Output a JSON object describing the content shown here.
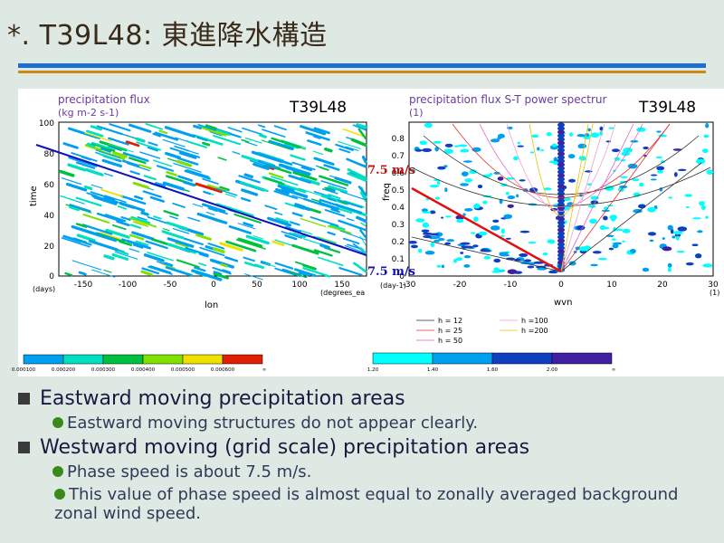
{
  "slide_title": "*. T39L48: 東進降水構造",
  "left_panel": {
    "title_line1": "precipitation  flux",
    "title_line2": "(kg m-2 s-1)",
    "tag": "T39L48",
    "ylabel": "time",
    "yunit": "(days)",
    "yticks": [
      "100",
      "80",
      "60",
      "40",
      "20",
      "0"
    ],
    "xticks": [
      "-150",
      "-100",
      "-50",
      "0",
      "50",
      "100",
      "150"
    ],
    "xunit": "(degrees_ea",
    "xlabel": "lon",
    "colorbar_labels": [
      "0.000100",
      "0.000200",
      "0.000300",
      "0.000400",
      "0.000500",
      "0.000600",
      "∞"
    ],
    "colorbar_colors": [
      "#00a0f0",
      "#00e0c0",
      "#00c040",
      "#80e000",
      "#f0e000",
      "#e02000"
    ]
  },
  "right_panel": {
    "title_line1": "precipitation  flux  S-T  power  spectrur",
    "title_line2": "(1)",
    "tag": "T39L48",
    "ylabel": "freq",
    "yunit": "(day-1)",
    "yticks": [
      "0.8",
      "0.7",
      "0.6",
      "0.5",
      "0.4",
      "0.3",
      "0.2",
      "0.1",
      "0"
    ],
    "xticks": [
      "-30",
      "-20",
      "-10",
      "0",
      "10",
      "20",
      "30"
    ],
    "xunit": "(1)",
    "xlabel": "wvn",
    "legend": [
      {
        "label": "h = 12",
        "color": "#303030"
      },
      {
        "label": "h = 25",
        "color": "#e03030"
      },
      {
        "label": "h = 50",
        "color": "#e060c0"
      },
      {
        "label": "h =100",
        "color": "#f0a0d0"
      },
      {
        "label": "h =200",
        "color": "#f0c000"
      }
    ],
    "colorbar_labels": [
      "1.20",
      "1.40",
      "1.60",
      "2.00",
      "∞"
    ],
    "colorbar_colors": [
      "#00ffff",
      "#00a0f0",
      "#1040c0",
      "#4020a0"
    ]
  },
  "annotations": {
    "speed_top": "7.5 m/s",
    "speed_bottom": "7.5 m/s"
  },
  "bullets": [
    {
      "level": 1,
      "text": "Eastward moving precipitation areas"
    },
    {
      "level": 2,
      "text": "Eastward moving structures do not appear clearly."
    },
    {
      "level": 1,
      "text": "Westward moving (grid scale) precipitation areas"
    },
    {
      "level": 2,
      "text": "Phase speed is about 7.5 m/s."
    },
    {
      "level": 2,
      "text": "This value of phase speed is almost equal to zonally averaged background zonal wind speed."
    }
  ]
}
